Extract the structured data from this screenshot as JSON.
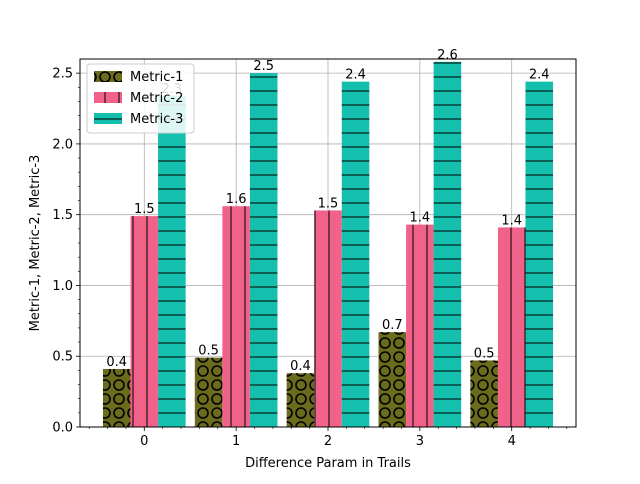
{
  "chart_data": {
    "type": "bar",
    "title": "",
    "xlabel": "Difference Param in Trails",
    "ylabel": "Metric-1, Metric-2, Metric-3",
    "categories": [
      "0",
      "1",
      "2",
      "3",
      "4"
    ],
    "ylim": [
      0,
      2.6
    ],
    "yticks": [
      "0.0",
      "0.5",
      "1.0",
      "1.5",
      "2.0",
      "2.5"
    ],
    "grid": true,
    "legend_position": "upper-left",
    "series": [
      {
        "name": "Metric-1",
        "values": [
          0.41,
          0.49,
          0.38,
          0.67,
          0.47
        ],
        "labels": [
          "0.4",
          "0.5",
          "0.4",
          "0.7",
          "0.5"
        ],
        "color": "#6b6b1e",
        "hatch": "circles"
      },
      {
        "name": "Metric-2",
        "values": [
          1.49,
          1.56,
          1.53,
          1.43,
          1.41
        ],
        "labels": [
          "1.5",
          "1.6",
          "1.5",
          "1.4",
          "1.4"
        ],
        "color": "#f0628a",
        "hatch": "vertical-lines"
      },
      {
        "name": "Metric-3",
        "values": [
          2.34,
          2.5,
          2.44,
          2.58,
          2.44
        ],
        "labels": [
          "2.3",
          "2.5",
          "2.4",
          "2.6",
          "2.4"
        ],
        "color": "#14bfad",
        "hatch": "horizontal-lines"
      }
    ]
  }
}
